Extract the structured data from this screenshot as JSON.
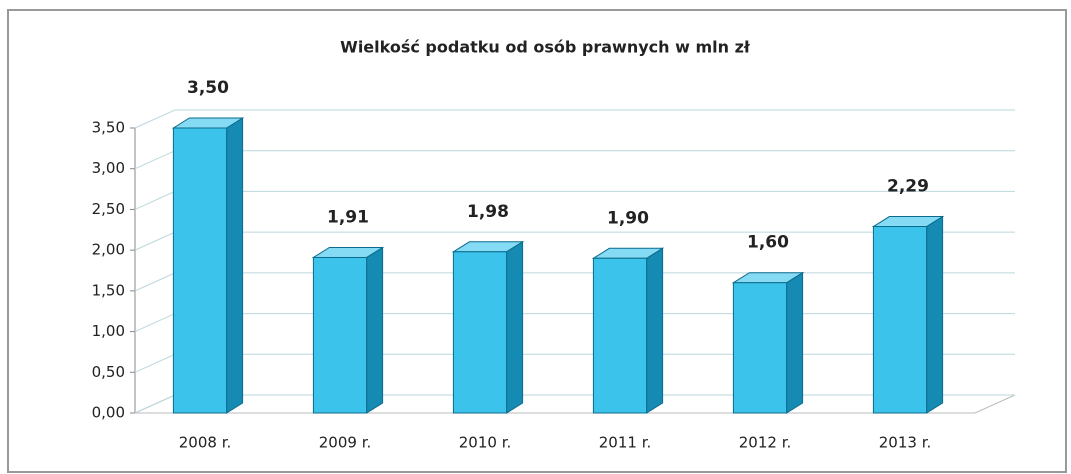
{
  "chart_data": {
    "type": "bar",
    "title": "Wielkość podatku od osób prawnych w mln zł",
    "categories": [
      "2008 r.",
      "2009 r.",
      "2010 r.",
      "2011 r.",
      "2012 r.",
      "2013 r."
    ],
    "values": [
      3.5,
      1.91,
      1.98,
      1.9,
      1.6,
      2.29
    ],
    "value_labels": [
      "3,50",
      "1,91",
      "1,98",
      "1,90",
      "1,60",
      "2,29"
    ],
    "color": "#3cc3ec",
    "ylim": [
      0,
      3.5
    ],
    "yticks": [
      {
        "value": 0,
        "label": "0,00"
      },
      {
        "value": 0.5,
        "label": "0,50"
      },
      {
        "value": 1,
        "label": "1,00"
      },
      {
        "value": 1.5,
        "label": "1,50"
      },
      {
        "value": 2,
        "label": "2,00"
      },
      {
        "value": 2.5,
        "label": "2,50"
      },
      {
        "value": 3,
        "label": "3,00"
      },
      {
        "value": 3.5,
        "label": "3,50"
      }
    ],
    "grid": true
  }
}
